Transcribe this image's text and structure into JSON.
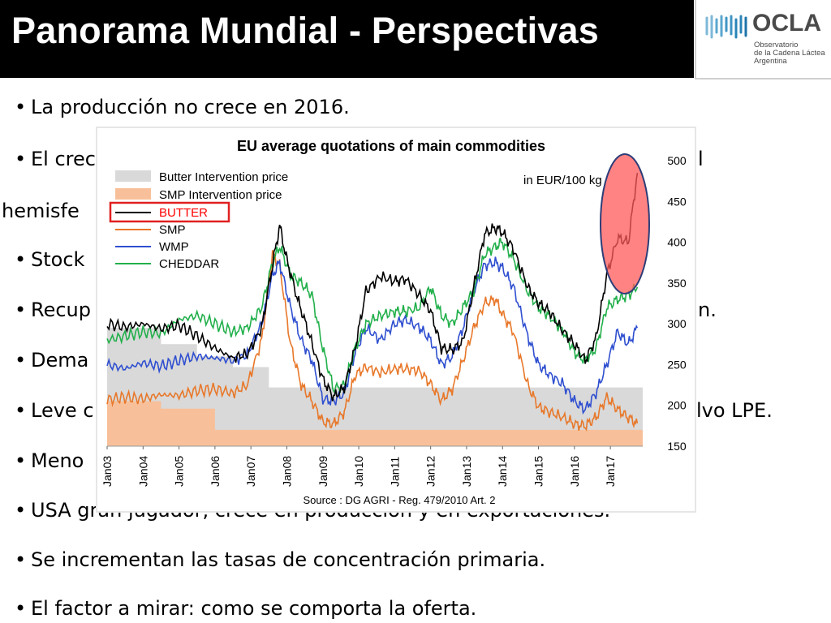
{
  "slide": {
    "title": "Panorama Mundial - Perspectivas"
  },
  "logo": {
    "name": "OCLA",
    "line1": "Observatorio",
    "line2": "de la Cadena Láctea",
    "line3": "Argentina"
  },
  "bullets": [
    "La producción no crece en 2016.",
    "El crec",
    "hemisfe",
    "Stock",
    "Recup",
    "Dema",
    "Leve c",
    "Meno",
    "USA  gran jugador, crece en producción y en exportaciones.",
    "Se incrementan las tasas de concentración primaria.",
    "El factor a mirar: como se comporta la oferta."
  ],
  "bullet_tails": {
    "b1": "l",
    "b4": "n.",
    "b6": "lvo LPE."
  },
  "colors": {
    "butter_intervention": "#d9d9d9",
    "smp_intervention": "#f8c09a",
    "butter": "#000000",
    "smp": "#e8782a",
    "wmp": "#2f4fd0",
    "cheddar": "#22b04b",
    "highlight": "#ff5a5a"
  },
  "chart_data": {
    "type": "line",
    "title": "EU average quotations of main commodities",
    "unit_label": "in EUR/100 kg",
    "source": "Source : DG AGRI - Reg. 479/2010 Art. 2",
    "ylim": [
      150,
      500
    ],
    "yticks": [
      150,
      200,
      250,
      300,
      350,
      400,
      450,
      500
    ],
    "x_ticks": [
      "Jan03",
      "Jan04",
      "Jan05",
      "Jan06",
      "Jan07",
      "Jan08",
      "Jan09",
      "Jan10",
      "Jan11",
      "Jan12",
      "Jan13",
      "Jan14",
      "Jan15",
      "Jan16",
      "Jan17"
    ],
    "x_range": [
      2003.0,
      2017.9
    ],
    "legend_position": "top-left",
    "legend": [
      "Butter Intervention price",
      "SMP Intervention price",
      "BUTTER",
      "SMP",
      "WMP",
      "CHEDDAR"
    ],
    "series": [
      {
        "name": "Butter Intervention price",
        "kind": "area",
        "x": [
          2003.0,
          2004.5,
          2004.5,
          2005.5,
          2005.5,
          2006.5,
          2006.5,
          2007.5,
          2007.5,
          2017.9
        ],
        "values": [
          295,
          295,
          275,
          275,
          260,
          260,
          247,
          247,
          222,
          222
        ]
      },
      {
        "name": "SMP Intervention price",
        "kind": "area",
        "x": [
          2003.0,
          2004.5,
          2004.5,
          2006.0,
          2006.0,
          2017.9
        ],
        "values": [
          205,
          205,
          196,
          196,
          170,
          170
        ]
      },
      {
        "name": "BUTTER",
        "x": [
          2003.0,
          2003.5,
          2004.0,
          2004.5,
          2005.0,
          2005.5,
          2006.0,
          2006.5,
          2006.9,
          2007.3,
          2007.6,
          2007.8,
          2008.0,
          2008.3,
          2008.6,
          2009.0,
          2009.3,
          2009.6,
          2009.9,
          2010.2,
          2010.6,
          2011.0,
          2011.3,
          2011.7,
          2012.0,
          2012.3,
          2012.6,
          2012.9,
          2013.2,
          2013.5,
          2013.8,
          2014.0,
          2014.3,
          2014.7,
          2015.0,
          2015.3,
          2015.7,
          2016.0,
          2016.3,
          2016.6,
          2016.9,
          2017.2,
          2017.5,
          2017.75
        ],
        "values": [
          300,
          296,
          300,
          294,
          298,
          285,
          270,
          258,
          263,
          295,
          372,
          420,
          378,
          330,
          290,
          232,
          210,
          222,
          270,
          340,
          358,
          352,
          355,
          334,
          316,
          270,
          268,
          278,
          345,
          410,
          418,
          412,
          392,
          345,
          325,
          315,
          290,
          275,
          255,
          282,
          360,
          405,
          400,
          485
        ]
      },
      {
        "name": "SMP",
        "x": [
          2003.0,
          2003.5,
          2004.0,
          2004.5,
          2005.0,
          2005.5,
          2006.0,
          2006.5,
          2006.9,
          2007.3,
          2007.6,
          2007.8,
          2008.1,
          2008.4,
          2008.7,
          2009.0,
          2009.3,
          2009.6,
          2009.9,
          2010.2,
          2010.6,
          2011.0,
          2011.3,
          2011.7,
          2012.0,
          2012.3,
          2012.6,
          2012.9,
          2013.2,
          2013.5,
          2013.8,
          2014.0,
          2014.3,
          2014.7,
          2015.0,
          2015.3,
          2015.7,
          2016.0,
          2016.3,
          2016.6,
          2016.9,
          2017.2,
          2017.5,
          2017.75
        ],
        "values": [
          207,
          210,
          208,
          213,
          212,
          218,
          220,
          215,
          225,
          280,
          385,
          372,
          275,
          225,
          205,
          180,
          177,
          192,
          237,
          247,
          240,
          245,
          245,
          242,
          226,
          206,
          220,
          255,
          295,
          325,
          330,
          312,
          290,
          225,
          198,
          192,
          185,
          177,
          175,
          185,
          210,
          195,
          185,
          178
        ]
      },
      {
        "name": "WMP",
        "x": [
          2003.0,
          2003.5,
          2004.0,
          2004.5,
          2005.0,
          2005.5,
          2006.0,
          2006.5,
          2006.9,
          2007.3,
          2007.6,
          2007.8,
          2008.1,
          2008.4,
          2008.7,
          2009.0,
          2009.3,
          2009.6,
          2009.9,
          2010.2,
          2010.6,
          2011.0,
          2011.3,
          2011.7,
          2012.0,
          2012.3,
          2012.6,
          2012.9,
          2013.2,
          2013.5,
          2013.8,
          2014.0,
          2014.3,
          2014.7,
          2015.0,
          2015.3,
          2015.7,
          2016.0,
          2016.3,
          2016.6,
          2016.9,
          2017.2,
          2017.5,
          2017.75
        ],
        "values": [
          250,
          245,
          252,
          248,
          255,
          260,
          258,
          255,
          262,
          300,
          360,
          375,
          320,
          280,
          255,
          208,
          205,
          215,
          265,
          295,
          280,
          300,
          305,
          295,
          280,
          250,
          260,
          295,
          340,
          372,
          375,
          368,
          345,
          285,
          250,
          238,
          225,
          205,
          195,
          215,
          250,
          290,
          275,
          295
        ]
      },
      {
        "name": "CHEDDAR",
        "x": [
          2003.0,
          2003.5,
          2004.0,
          2004.5,
          2005.0,
          2005.5,
          2006.0,
          2006.5,
          2006.9,
          2007.3,
          2007.6,
          2007.8,
          2008.1,
          2008.4,
          2008.7,
          2009.0,
          2009.3,
          2009.6,
          2009.9,
          2010.2,
          2010.6,
          2011.0,
          2011.3,
          2011.7,
          2012.0,
          2012.3,
          2012.6,
          2012.9,
          2013.2,
          2013.5,
          2013.8,
          2014.0,
          2014.3,
          2014.7,
          2015.0,
          2015.3,
          2015.7,
          2016.0,
          2016.3,
          2016.6,
          2016.9,
          2017.2,
          2017.5,
          2017.75
        ],
        "values": [
          280,
          285,
          290,
          288,
          305,
          310,
          300,
          290,
          295,
          320,
          375,
          395,
          360,
          350,
          335,
          270,
          220,
          225,
          270,
          300,
          310,
          315,
          315,
          320,
          345,
          310,
          300,
          320,
          340,
          385,
          395,
          400,
          380,
          340,
          320,
          310,
          290,
          265,
          255,
          270,
          320,
          330,
          335,
          345
        ]
      }
    ]
  }
}
